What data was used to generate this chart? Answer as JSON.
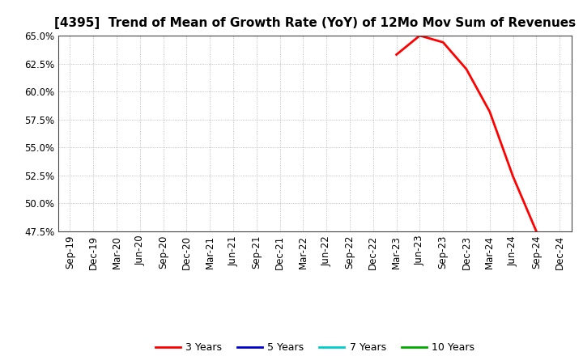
{
  "title": "[4395]  Trend of Mean of Growth Rate (YoY) of 12Mo Mov Sum of Revenues",
  "background_color": "#ffffff",
  "grid_color": "#999999",
  "line_3y_color": "#ff0000",
  "line_5y_color": "#0000cc",
  "line_7y_color": "#00cccc",
  "line_10y_color": "#00aa00",
  "ylim_min": 0.475,
  "ylim_max": 0.65,
  "yticks": [
    0.475,
    0.5,
    0.525,
    0.55,
    0.575,
    0.6,
    0.625,
    0.65
  ],
  "ytick_labels": [
    "47.5%",
    "50.0%",
    "52.5%",
    "55.0%",
    "57.5%",
    "60.0%",
    "62.5%",
    "65.0%"
  ],
  "xtick_labels": [
    "Sep-19",
    "Dec-19",
    "Mar-20",
    "Jun-20",
    "Sep-20",
    "Dec-20",
    "Mar-21",
    "Jun-21",
    "Sep-21",
    "Dec-21",
    "Mar-22",
    "Jun-22",
    "Sep-22",
    "Dec-22",
    "Mar-23",
    "Jun-23",
    "Sep-23",
    "Dec-23",
    "Mar-24",
    "Jun-24",
    "Sep-24",
    "Dec-24"
  ],
  "legend_labels": [
    "3 Years",
    "5 Years",
    "7 Years",
    "10 Years"
  ],
  "series_3y_x_labels": [
    "Mar-23",
    "Jun-23",
    "Sep-23",
    "Dec-23",
    "Mar-24",
    "Jun-24",
    "Sep-24"
  ],
  "series_3y_y": [
    0.633,
    0.65,
    0.644,
    0.62,
    0.582,
    0.524,
    0.475
  ],
  "title_fontsize": 11,
  "tick_fontsize": 8.5,
  "legend_fontsize": 9
}
